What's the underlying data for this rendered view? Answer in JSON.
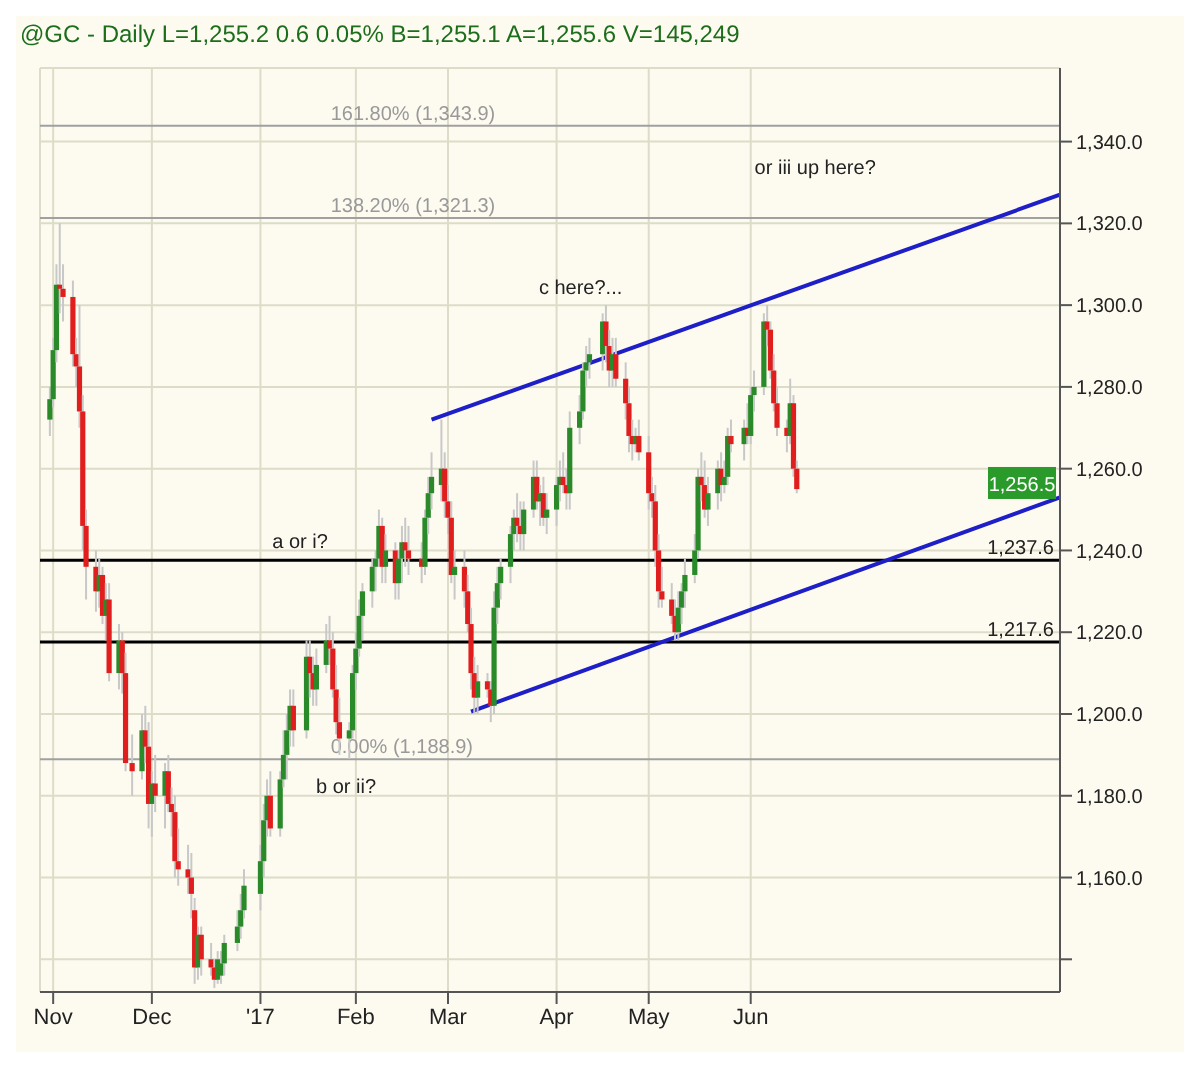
{
  "chart_data": {
    "type": "candlestick",
    "title": "@GC - Daily  L=1,255.2  0.6  0.05%  B=1,255.1  A=1,255.6  V=145,249",
    "xlim": [
      "2016-10-28",
      "2017-09-03"
    ],
    "xticks": [
      {
        "value": "2016-11-01",
        "label": "Nov"
      },
      {
        "value": "2016-12-01",
        "label": "Dec"
      },
      {
        "value": "2017-01-03",
        "label": "'17"
      },
      {
        "value": "2017-02-01",
        "label": "Feb"
      },
      {
        "value": "2017-03-01",
        "label": "Mar"
      },
      {
        "value": "2017-04-03",
        "label": "Apr"
      },
      {
        "value": "2017-05-01",
        "label": "May"
      },
      {
        "value": "2017-06-01",
        "label": "Jun"
      }
    ],
    "ylim": [
      1132,
      1358
    ],
    "yticks": [
      {
        "value": 1140,
        "label": null
      },
      {
        "value": 1160,
        "label": "1,160.0"
      },
      {
        "value": 1180,
        "label": "1,180.0"
      },
      {
        "value": 1200,
        "label": "1,200.0"
      },
      {
        "value": 1220,
        "label": "1,220.0"
      },
      {
        "value": 1240,
        "label": "1,240.0"
      },
      {
        "value": 1260,
        "label": "1,260.0"
      },
      {
        "value": 1280,
        "label": "1,280.0"
      },
      {
        "value": 1300,
        "label": "1,300.0"
      },
      {
        "value": 1320,
        "label": "1,320.0"
      },
      {
        "value": 1340,
        "label": "1,340.0"
      }
    ],
    "grid": true,
    "series": [
      {
        "type": "candlestick",
        "x": [
          "2016-10-31",
          "2016-11-01",
          "2016-11-02",
          "2016-11-03",
          "2016-11-04",
          "2016-11-07",
          "2016-11-08",
          "2016-11-09",
          "2016-11-10",
          "2016-11-11",
          "2016-11-14",
          "2016-11-15",
          "2016-11-16",
          "2016-11-17",
          "2016-11-18",
          "2016-11-21",
          "2016-11-22",
          "2016-11-23",
          "2016-11-25",
          "2016-11-28",
          "2016-11-29",
          "2016-11-30",
          "2016-12-01",
          "2016-12-02",
          "2016-12-05",
          "2016-12-06",
          "2016-12-07",
          "2016-12-08",
          "2016-12-09",
          "2016-12-12",
          "2016-12-13",
          "2016-12-14",
          "2016-12-15",
          "2016-12-16",
          "2016-12-19",
          "2016-12-20",
          "2016-12-21",
          "2016-12-22",
          "2016-12-23",
          "2016-12-27",
          "2016-12-28",
          "2016-12-29",
          "2017-01-03",
          "2017-01-04",
          "2017-01-05",
          "2017-01-06",
          "2017-01-09",
          "2017-01-10",
          "2017-01-11",
          "2017-01-12",
          "2017-01-13",
          "2017-01-17",
          "2017-01-18",
          "2017-01-19",
          "2017-01-20",
          "2017-01-23",
          "2017-01-24",
          "2017-01-25",
          "2017-01-26",
          "2017-01-27",
          "2017-01-30",
          "2017-01-31",
          "2017-02-01",
          "2017-02-02",
          "2017-02-03",
          "2017-02-06",
          "2017-02-07",
          "2017-02-08",
          "2017-02-09",
          "2017-02-10",
          "2017-02-13",
          "2017-02-14",
          "2017-02-15",
          "2017-02-16",
          "2017-02-17",
          "2017-02-21",
          "2017-02-22",
          "2017-02-23",
          "2017-02-24",
          "2017-02-27",
          "2017-02-28",
          "2017-03-01",
          "2017-03-02",
          "2017-03-03",
          "2017-03-06",
          "2017-03-07",
          "2017-03-08",
          "2017-03-09",
          "2017-03-10",
          "2017-03-13",
          "2017-03-14",
          "2017-03-15",
          "2017-03-16",
          "2017-03-17",
          "2017-03-20",
          "2017-03-21",
          "2017-03-22",
          "2017-03-23",
          "2017-03-24",
          "2017-03-27",
          "2017-03-28",
          "2017-03-29",
          "2017-03-30",
          "2017-03-31",
          "2017-04-03",
          "2017-04-04",
          "2017-04-05",
          "2017-04-06",
          "2017-04-07",
          "2017-04-10",
          "2017-04-11",
          "2017-04-12",
          "2017-04-13",
          "2017-04-17",
          "2017-04-18",
          "2017-04-19",
          "2017-04-20",
          "2017-04-21",
          "2017-04-24",
          "2017-04-25",
          "2017-04-26",
          "2017-04-27",
          "2017-04-28",
          "2017-05-01",
          "2017-05-02",
          "2017-05-03",
          "2017-05-04",
          "2017-05-05",
          "2017-05-08",
          "2017-05-09",
          "2017-05-10",
          "2017-05-11",
          "2017-05-12",
          "2017-05-15",
          "2017-05-16",
          "2017-05-17",
          "2017-05-18",
          "2017-05-19",
          "2017-05-22",
          "2017-05-23",
          "2017-05-24",
          "2017-05-25",
          "2017-05-26",
          "2017-05-30",
          "2017-05-31",
          "2017-06-01",
          "2017-06-02",
          "2017-06-05",
          "2017-06-06",
          "2017-06-07",
          "2017-06-08",
          "2017-06-09",
          "2017-06-12",
          "2017-06-13",
          "2017-06-14",
          "2017-06-15"
        ],
        "ohlc": [
          [
            1272,
            1280,
            1268,
            1277
          ],
          [
            1277,
            1292,
            1275,
            1289
          ],
          [
            1289,
            1310,
            1286,
            1305
          ],
          [
            1305,
            1320,
            1298,
            1304
          ],
          [
            1304,
            1310,
            1296,
            1302
          ],
          [
            1302,
            1306,
            1285,
            1288
          ],
          [
            1288,
            1292,
            1280,
            1285
          ],
          [
            1285,
            1300,
            1270,
            1274
          ],
          [
            1274,
            1278,
            1240,
            1246
          ],
          [
            1246,
            1250,
            1228,
            1236
          ],
          [
            1236,
            1240,
            1225,
            1230
          ],
          [
            1230,
            1238,
            1226,
            1234
          ],
          [
            1234,
            1236,
            1222,
            1224
          ],
          [
            1224,
            1232,
            1218,
            1228
          ],
          [
            1228,
            1232,
            1208,
            1210
          ],
          [
            1210,
            1222,
            1206,
            1218
          ],
          [
            1218,
            1220,
            1205,
            1210
          ],
          [
            1210,
            1215,
            1186,
            1188
          ],
          [
            1188,
            1195,
            1180,
            1186
          ],
          [
            1186,
            1200,
            1184,
            1196
          ],
          [
            1196,
            1202,
            1188,
            1192
          ],
          [
            1192,
            1198,
            1172,
            1178
          ],
          [
            1178,
            1186,
            1170,
            1183
          ],
          [
            1183,
            1190,
            1176,
            1180
          ],
          [
            1180,
            1188,
            1172,
            1186
          ],
          [
            1186,
            1190,
            1176,
            1178
          ],
          [
            1178,
            1182,
            1170,
            1176
          ],
          [
            1176,
            1180,
            1160,
            1164
          ],
          [
            1164,
            1172,
            1158,
            1162
          ],
          [
            1162,
            1168,
            1156,
            1160
          ],
          [
            1160,
            1166,
            1150,
            1156
          ],
          [
            1152,
            1155,
            1134,
            1138
          ],
          [
            1138,
            1148,
            1135,
            1146
          ],
          [
            1146,
            1148,
            1136,
            1140
          ],
          [
            1140,
            1144,
            1136,
            1138
          ],
          [
            1138,
            1140,
            1133,
            1135
          ],
          [
            1135,
            1142,
            1134,
            1140
          ],
          [
            1136,
            1142,
            1134,
            1139
          ],
          [
            1139,
            1146,
            1136,
            1144
          ],
          [
            1144,
            1152,
            1142,
            1148
          ],
          [
            1148,
            1156,
            1145,
            1152
          ],
          [
            1152,
            1162,
            1150,
            1158
          ],
          [
            1156,
            1168,
            1152,
            1164
          ],
          [
            1164,
            1178,
            1160,
            1174
          ],
          [
            1174,
            1184,
            1170,
            1180
          ],
          [
            1180,
            1186,
            1170,
            1172
          ],
          [
            1172,
            1186,
            1170,
            1184
          ],
          [
            1184,
            1196,
            1182,
            1190
          ],
          [
            1190,
            1200,
            1184,
            1196
          ],
          [
            1196,
            1206,
            1192,
            1202
          ],
          [
            1202,
            1206,
            1192,
            1196
          ],
          [
            1196,
            1218,
            1194,
            1214
          ],
          [
            1214,
            1218,
            1204,
            1210
          ],
          [
            1210,
            1214,
            1202,
            1206
          ],
          [
            1206,
            1216,
            1202,
            1212
          ],
          [
            1212,
            1222,
            1210,
            1218
          ],
          [
            1218,
            1224,
            1212,
            1216
          ],
          [
            1216,
            1220,
            1204,
            1206
          ],
          [
            1206,
            1212,
            1195,
            1198
          ],
          [
            1198,
            1204,
            1190,
            1194
          ],
          [
            1194,
            1198,
            1189,
            1196
          ],
          [
            1196,
            1212,
            1194,
            1210
          ],
          [
            1210,
            1220,
            1206,
            1216
          ],
          [
            1216,
            1228,
            1214,
            1224
          ],
          [
            1224,
            1232,
            1218,
            1230
          ],
          [
            1230,
            1238,
            1226,
            1236
          ],
          [
            1236,
            1240,
            1230,
            1238
          ],
          [
            1238,
            1250,
            1236,
            1246
          ],
          [
            1246,
            1248,
            1232,
            1236
          ],
          [
            1236,
            1244,
            1232,
            1240
          ],
          [
            1240,
            1242,
            1228,
            1232
          ],
          [
            1232,
            1240,
            1228,
            1238
          ],
          [
            1238,
            1246,
            1232,
            1242
          ],
          [
            1242,
            1248,
            1236,
            1240
          ],
          [
            1240,
            1246,
            1234,
            1238
          ],
          [
            1238,
            1242,
            1232,
            1236
          ],
          [
            1236,
            1250,
            1234,
            1248
          ],
          [
            1248,
            1258,
            1244,
            1254
          ],
          [
            1254,
            1264,
            1250,
            1258
          ],
          [
            1256,
            1272,
            1252,
            1260
          ],
          [
            1260,
            1264,
            1248,
            1252
          ],
          [
            1252,
            1256,
            1244,
            1248
          ],
          [
            1248,
            1252,
            1232,
            1234
          ],
          [
            1234,
            1240,
            1228,
            1236
          ],
          [
            1236,
            1240,
            1226,
            1230
          ],
          [
            1230,
            1234,
            1220,
            1222
          ],
          [
            1222,
            1226,
            1206,
            1210
          ],
          [
            1210,
            1214,
            1200,
            1204
          ],
          [
            1204,
            1212,
            1200,
            1208
          ],
          [
            1208,
            1210,
            1204,
            1206
          ],
          [
            1206,
            1208,
            1198,
            1202
          ],
          [
            1202,
            1230,
            1200,
            1226
          ],
          [
            1226,
            1236,
            1222,
            1232
          ],
          [
            1232,
            1238,
            1228,
            1236
          ],
          [
            1236,
            1246,
            1232,
            1244
          ],
          [
            1244,
            1250,
            1240,
            1248
          ],
          [
            1248,
            1254,
            1242,
            1246
          ],
          [
            1246,
            1252,
            1240,
            1244
          ],
          [
            1244,
            1252,
            1240,
            1250
          ],
          [
            1250,
            1262,
            1248,
            1258
          ],
          [
            1258,
            1262,
            1250,
            1252
          ],
          [
            1252,
            1256,
            1246,
            1254
          ],
          [
            1254,
            1258,
            1246,
            1248
          ],
          [
            1248,
            1254,
            1244,
            1250
          ],
          [
            1250,
            1258,
            1246,
            1256
          ],
          [
            1256,
            1262,
            1252,
            1258
          ],
          [
            1258,
            1264,
            1254,
            1256
          ],
          [
            1256,
            1260,
            1250,
            1254
          ],
          [
            1254,
            1274,
            1250,
            1270
          ],
          [
            1270,
            1278,
            1266,
            1274
          ],
          [
            1274,
            1286,
            1272,
            1284
          ],
          [
            1284,
            1290,
            1280,
            1286
          ],
          [
            1286,
            1292,
            1282,
            1288
          ],
          [
            1288,
            1298,
            1284,
            1296
          ],
          [
            1296,
            1300,
            1286,
            1290
          ],
          [
            1290,
            1294,
            1280,
            1284
          ],
          [
            1284,
            1292,
            1280,
            1288
          ],
          [
            1288,
            1292,
            1280,
            1282
          ],
          [
            1282,
            1286,
            1272,
            1276
          ],
          [
            1276,
            1280,
            1264,
            1268
          ],
          [
            1268,
            1272,
            1262,
            1266
          ],
          [
            1266,
            1270,
            1264,
            1268
          ],
          [
            1268,
            1272,
            1262,
            1264
          ],
          [
            1264,
            1268,
            1250,
            1254
          ],
          [
            1254,
            1258,
            1248,
            1252
          ],
          [
            1252,
            1256,
            1236,
            1240
          ],
          [
            1240,
            1244,
            1226,
            1230
          ],
          [
            1230,
            1236,
            1226,
            1228
          ],
          [
            1228,
            1232,
            1222,
            1224
          ],
          [
            1224,
            1228,
            1218,
            1220
          ],
          [
            1220,
            1230,
            1218,
            1226
          ],
          [
            1226,
            1232,
            1222,
            1230
          ],
          [
            1230,
            1238,
            1226,
            1234
          ],
          [
            1234,
            1244,
            1232,
            1240
          ],
          [
            1240,
            1260,
            1238,
            1258
          ],
          [
            1258,
            1264,
            1252,
            1256
          ],
          [
            1256,
            1262,
            1248,
            1250
          ],
          [
            1250,
            1258,
            1246,
            1254
          ],
          [
            1254,
            1262,
            1250,
            1260
          ],
          [
            1260,
            1264,
            1252,
            1256
          ],
          [
            1256,
            1262,
            1254,
            1258
          ],
          [
            1258,
            1270,
            1256,
            1268
          ],
          [
            1268,
            1272,
            1264,
            1266
          ],
          [
            1266,
            1272,
            1262,
            1270
          ],
          [
            1270,
            1276,
            1266,
            1268
          ],
          [
            1268,
            1280,
            1266,
            1278
          ],
          [
            1278,
            1284,
            1274,
            1280
          ],
          [
            1280,
            1298,
            1278,
            1296
          ],
          [
            1296,
            1300,
            1290,
            1294
          ],
          [
            1294,
            1296,
            1282,
            1284
          ],
          [
            1284,
            1288,
            1274,
            1276
          ],
          [
            1276,
            1280,
            1268,
            1270
          ],
          [
            1270,
            1272,
            1264,
            1268
          ],
          [
            1268,
            1282,
            1266,
            1276
          ],
          [
            1276,
            1278,
            1258,
            1260
          ],
          [
            1260,
            1262,
            1254,
            1255
          ]
        ]
      },
      {
        "type": "line",
        "color": "#1f1fc8",
        "x": [
          "2017-02-24",
          "2017-09-03"
        ],
        "values": [
          1272,
          1327
        ]
      },
      {
        "type": "line",
        "color": "#1f1fc8",
        "x": [
          "2017-03-08",
          "2017-09-03"
        ],
        "values": [
          1200.6,
          1253
        ]
      }
    ],
    "ref_lines": [
      {
        "axis": "y",
        "value": 1343.9,
        "label": "161.80% (1,343.9)",
        "color": "#a0a0a0"
      },
      {
        "axis": "y",
        "value": 1321.3,
        "label": "138.20% (1,321.3)",
        "color": "#a0a0a0"
      },
      {
        "axis": "y",
        "value": 1188.9,
        "label": "0.00% (1,188.9)",
        "color": "#a0a0a0"
      },
      {
        "axis": "y",
        "value": 1237.6,
        "label": "1,237.6",
        "color": "#000000"
      },
      {
        "axis": "y",
        "value": 1217.6,
        "label": "1,217.6",
        "color": "#000000"
      }
    ],
    "annotations": [
      "or iii up here?",
      "c here?...",
      "a or i?",
      "b or ii?",
      {
        "text": "1,256.5",
        "y": 1256.5
      }
    ]
  }
}
